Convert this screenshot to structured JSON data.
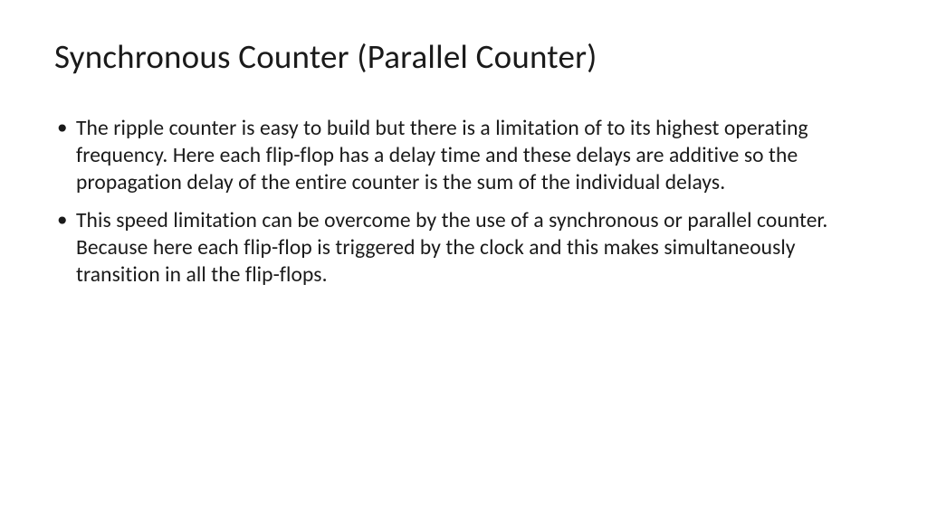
{
  "slide": {
    "title": "Synchronous Counter (Parallel Counter)",
    "title_fontsize": 37,
    "title_color": "#1a1a1a",
    "body_fontsize": 23.5,
    "body_color": "#1a1a1a",
    "background_color": "#ffffff",
    "bullets": [
      "The ripple counter is easy to build but there is a limitation of to its highest operating frequency. Here each flip-flop has a delay time and these delays are additive so the propagation delay of the entire counter is the sum of the individual delays.",
      "This speed limitation can be overcome by the use of a synchronous or parallel counter. Because here each flip-flop is triggered by the clock and this makes simultaneously transition in all the flip-flops."
    ]
  }
}
